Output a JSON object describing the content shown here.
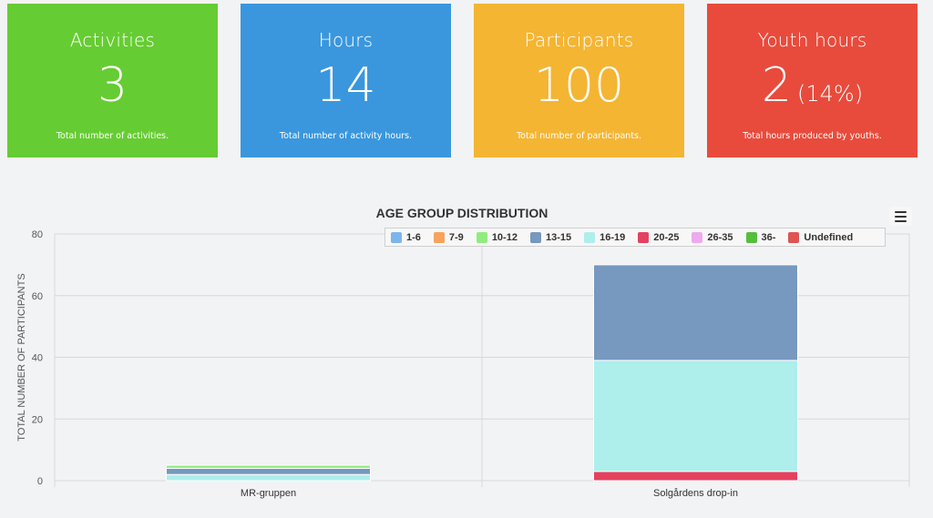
{
  "cards": [
    {
      "title": "Activities",
      "value": "3",
      "extra": "",
      "description": "Total number of activities."
    },
    {
      "title": "Hours",
      "value": "14",
      "extra": "",
      "description": "Total number of activity hours."
    },
    {
      "title": "Participants",
      "value": "100",
      "extra": "",
      "description": "Total number of participants."
    },
    {
      "title": "Youth hours",
      "value": "2",
      "extra": "(14%)",
      "description": "Total hours produced by youths."
    }
  ],
  "colors": {
    "activities": "#66cc33",
    "hours": "#3a97dd",
    "participants": "#f4b533",
    "youth_hours": "#e84b3c"
  },
  "menu": {
    "icon": "hamburger-menu-icon"
  },
  "chart_data": {
    "type": "bar",
    "stacked": true,
    "title": "AGE GROUP DISTRIBUTION",
    "xlabel": "",
    "ylabel": "TOTAL NUMBER OF PARTICIPANTS",
    "ylim": [
      0,
      80
    ],
    "yticks": [
      0,
      20,
      40,
      60,
      80
    ],
    "grid": true,
    "legend_position": "top-right",
    "categories": [
      "MR-gruppen",
      "Solgårdens drop-in"
    ],
    "series": [
      {
        "name": "1-6",
        "color": "#7cb5ec",
        "values": [
          0,
          0
        ]
      },
      {
        "name": "7-9",
        "color": "#f7a35c",
        "values": [
          0,
          0
        ]
      },
      {
        "name": "10-12",
        "color": "#90ed7d",
        "values": [
          1,
          0
        ]
      },
      {
        "name": "13-15",
        "color": "#7798bf",
        "values": [
          2,
          31
        ]
      },
      {
        "name": "16-19",
        "color": "#aeeeeb",
        "values": [
          2,
          36
        ]
      },
      {
        "name": "20-25",
        "color": "#e4415f",
        "values": [
          0,
          3
        ]
      },
      {
        "name": "26-35",
        "color": "#eeaaee",
        "values": [
          0,
          0
        ]
      },
      {
        "name": "36-",
        "color": "#55bf3b",
        "values": [
          0,
          0
        ]
      },
      {
        "name": "Undefined",
        "color": "#df5353",
        "values": [
          0,
          0
        ]
      }
    ]
  }
}
